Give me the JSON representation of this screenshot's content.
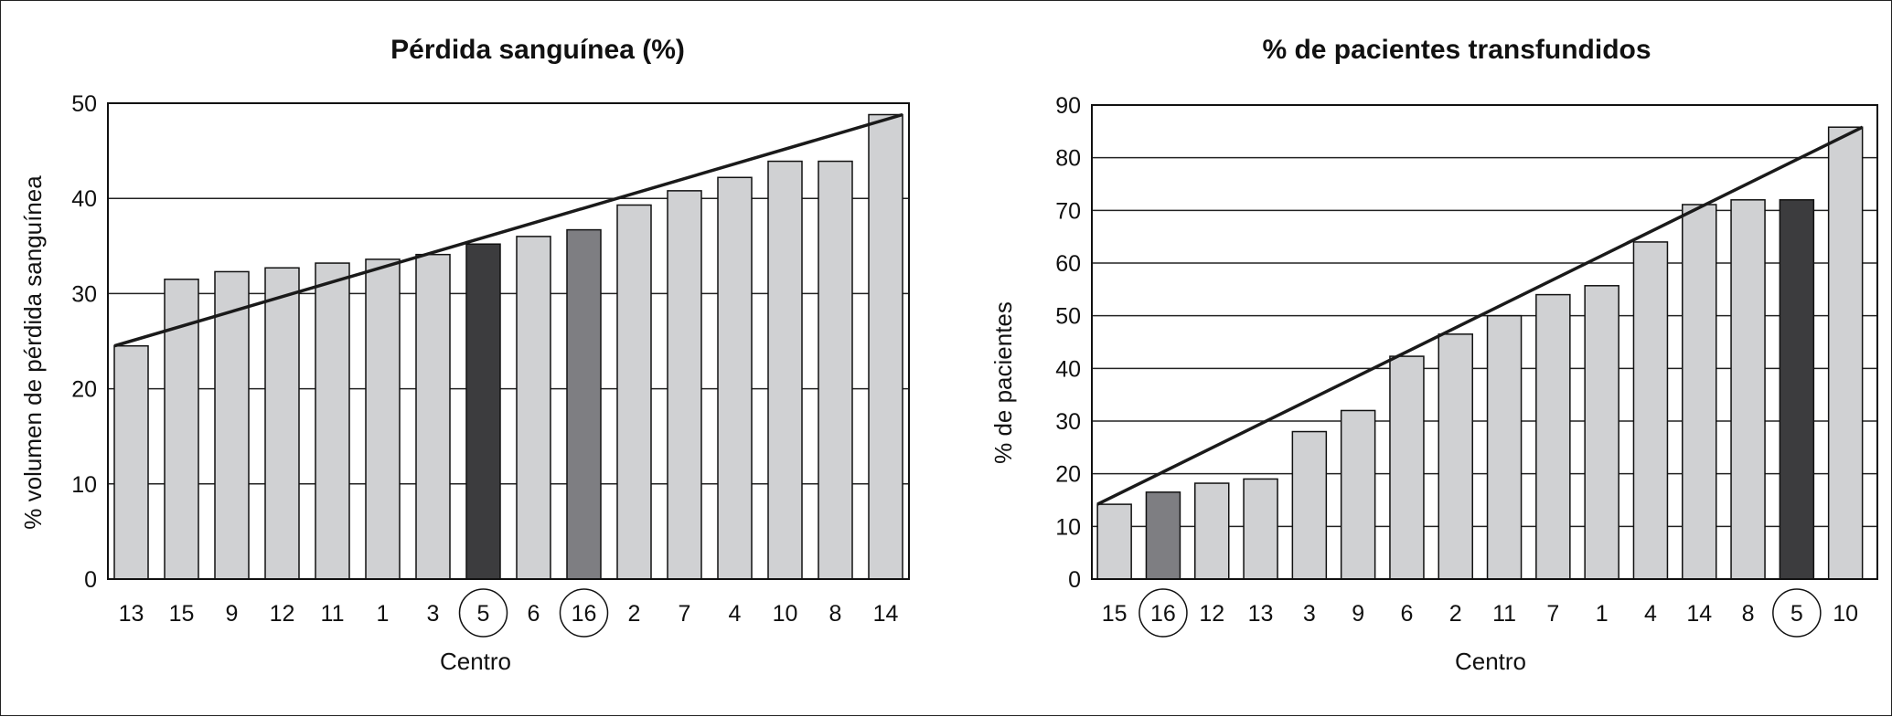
{
  "chart_data": [
    {
      "type": "bar",
      "title": "Pérdida sanguínea (%)",
      "xlabel": "Centro",
      "ylabel": "% volumen de pérdida sanguínea",
      "ylim": [
        0,
        50
      ],
      "yticks": [
        0,
        10,
        20,
        30,
        40,
        50
      ],
      "grid": true,
      "categories": [
        "13",
        "15",
        "9",
        "12",
        "11",
        "1",
        "3",
        "5",
        "6",
        "16",
        "2",
        "7",
        "4",
        "10",
        "8",
        "14"
      ],
      "values": [
        24.5,
        31.5,
        32.3,
        32.7,
        33.2,
        33.6,
        34.1,
        35.2,
        36.0,
        36.7,
        39.3,
        40.8,
        42.2,
        43.9,
        43.9,
        48.8
      ],
      "circled": [
        "5",
        "16"
      ],
      "highlight": {
        "5": "#3c3c3e",
        "16": "#7e7e82"
      },
      "bar_color": "#d0d1d3",
      "trend": {
        "from": [
          "13",
          24.5
        ],
        "to": [
          "14",
          48.8
        ]
      }
    },
    {
      "type": "bar",
      "title": "% de pacientes transfundidos",
      "xlabel": "Centro",
      "ylabel": "% de pacientes",
      "ylim": [
        0,
        90
      ],
      "yticks": [
        0,
        10,
        20,
        30,
        40,
        50,
        60,
        70,
        80,
        90
      ],
      "grid": true,
      "categories": [
        "15",
        "16",
        "12",
        "13",
        "3",
        "9",
        "6",
        "2",
        "11",
        "7",
        "1",
        "4",
        "14",
        "8",
        "5",
        "10"
      ],
      "values": [
        14.2,
        16.5,
        18.2,
        19.0,
        28.0,
        32.0,
        42.3,
        46.5,
        50.0,
        54.0,
        55.7,
        64.0,
        71.1,
        72.0,
        72.0,
        85.8
      ],
      "circled": [
        "16",
        "5"
      ],
      "highlight": {
        "5": "#3c3c3e",
        "16": "#7e7e82"
      },
      "bar_color": "#d0d1d3",
      "trend": {
        "from": [
          "15",
          14.2
        ],
        "to": [
          "10",
          85.8
        ]
      }
    }
  ]
}
